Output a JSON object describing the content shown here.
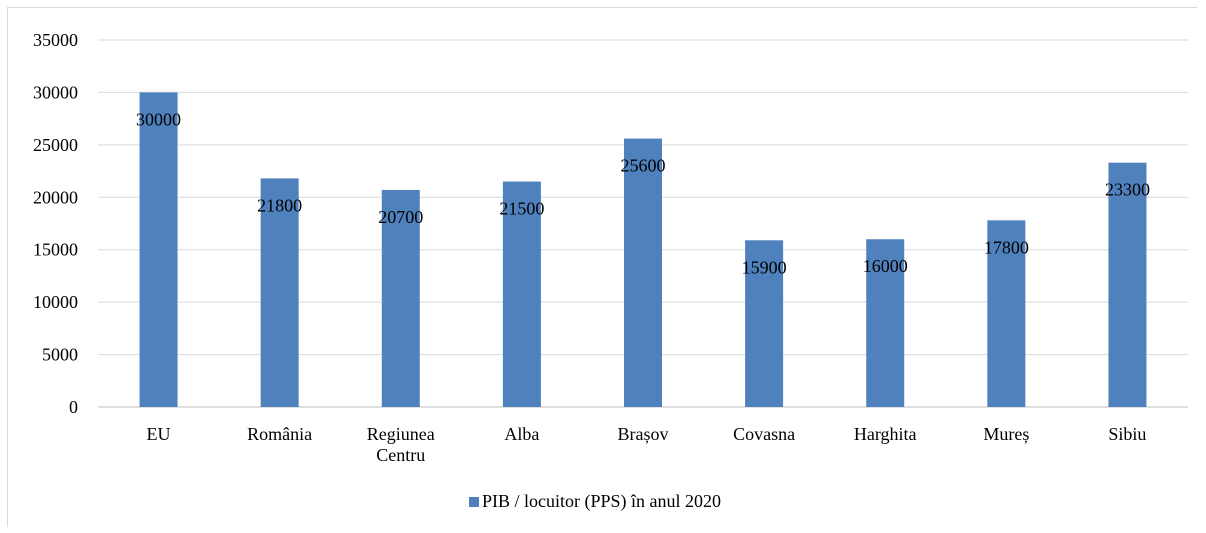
{
  "chart_data": {
    "type": "bar",
    "categories": [
      [
        "EU"
      ],
      [
        "România"
      ],
      [
        "Regiunea",
        "Centru"
      ],
      [
        "Alba"
      ],
      [
        "Brașov"
      ],
      [
        "Covasna"
      ],
      [
        "Harghita"
      ],
      [
        "Mureș"
      ],
      [
        "Sibiu"
      ]
    ],
    "series": [
      {
        "name": "PIB / locuitor (PPS) în anul 2020",
        "values": [
          30000,
          21800,
          20700,
          21500,
          25600,
          15900,
          16000,
          17800,
          23300
        ],
        "color": "#4f81bd"
      }
    ],
    "ylim": [
      0,
      35000
    ],
    "yticks": [
      0,
      5000,
      10000,
      15000,
      20000,
      25000,
      30000,
      35000
    ],
    "grid": true,
    "legend": "bottom",
    "data_labels": true,
    "colors": {
      "bar": "#4f81bd",
      "grid": "#d9d9d9",
      "axis": "#bfbfbf"
    }
  }
}
